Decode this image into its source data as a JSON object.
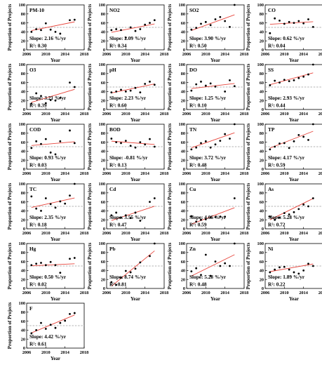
{
  "figure": {
    "ylabel": "Proportion of Projects",
    "xlabel": "Year"
  },
  "colors": {
    "trend": "#e8453c",
    "reference": "#9a9a9a",
    "points": "#000000"
  },
  "chart_data": [
    {
      "type": "scatter",
      "title": "PM-10",
      "slope_text": "Slope: 2.16 %/yr",
      "r2_text": "R²: 0.30",
      "xlim": [
        2006,
        2018
      ],
      "ylim": [
        0,
        100
      ],
      "xticks": [
        2006,
        2010,
        2014,
        2018
      ],
      "yticks": [
        0,
        20,
        40,
        60,
        80,
        100
      ],
      "reference": 50,
      "xlabel": "Year",
      "ylabel": "Proportion of Projects",
      "x": [
        2007,
        2008,
        2009,
        2010,
        2011,
        2012,
        2013,
        2015,
        2016
      ],
      "y": [
        40,
        46,
        44,
        59,
        45,
        40,
        36,
        66,
        67
      ],
      "trend": [
        [
          2007,
          42.9
        ],
        [
          2016,
          62.3
        ]
      ]
    },
    {
      "type": "scatter",
      "title": "NO2",
      "slope_text": "Slope: 2.09 %/yr",
      "r2_text": "R²: 0.34",
      "xlim": [
        2006,
        2018
      ],
      "ylim": [
        0,
        100
      ],
      "xticks": [
        2006,
        2010,
        2014,
        2018
      ],
      "yticks": [
        0,
        20,
        40,
        60,
        80,
        100
      ],
      "reference": 50,
      "xlabel": "Year",
      "ylabel": "Proportion of Projects",
      "x": [
        2007,
        2008,
        2009,
        2010,
        2011,
        2012,
        2013,
        2014,
        2015,
        2016
      ],
      "y": [
        44,
        46,
        44,
        27,
        50,
        42,
        46,
        56,
        60,
        66
      ],
      "trend": [
        [
          2007,
          38.9
        ],
        [
          2016,
          57.7
        ]
      ]
    },
    {
      "type": "scatter",
      "title": "SO2",
      "slope_text": "Slope: 3.90 %/yr",
      "r2_text": "R²: 0.50",
      "xlim": [
        2006,
        2018
      ],
      "ylim": [
        0,
        100
      ],
      "xticks": [
        2006,
        2010,
        2014,
        2018
      ],
      "yticks": [
        0,
        20,
        40,
        60,
        80,
        100
      ],
      "reference": 50,
      "xlabel": "Year",
      "ylabel": "Proportion of Projects",
      "x": [
        2007,
        2008,
        2009,
        2010,
        2011,
        2012,
        2013,
        2014,
        2015,
        2016
      ],
      "y": [
        45,
        49,
        58,
        62,
        55,
        68,
        73,
        64,
        51,
        100
      ],
      "trend": [
        [
          2007,
          43.0
        ],
        [
          2016,
          78.1
        ]
      ]
    },
    {
      "type": "scatter",
      "title": "CO",
      "slope_text": "Slope: 0.62 %/yr",
      "r2_text": "R²: 0.04",
      "xlim": [
        2006,
        2018
      ],
      "ylim": [
        0,
        100
      ],
      "xticks": [
        2006,
        2010,
        2014,
        2018
      ],
      "yticks": [
        0,
        20,
        40,
        60,
        80,
        100
      ],
      "reference": 50,
      "xlabel": "Year",
      "ylabel": "Proportion of Projects",
      "x": [
        2007,
        2008,
        2009,
        2010,
        2011,
        2012,
        2013,
        2014,
        2015,
        2016
      ],
      "y": [
        37,
        70,
        65,
        58,
        62,
        60,
        64,
        59,
        68,
        51
      ],
      "trend": [
        [
          2007,
          57.0
        ],
        [
          2016,
          62.6
        ]
      ]
    },
    {
      "type": "scatter",
      "title": "O3",
      "slope_text": "Slope: 3.21 %/yr",
      "r2_text": "R²: 0.39",
      "xlim": [
        2006,
        2018
      ],
      "ylim": [
        0,
        100
      ],
      "xticks": [
        2006,
        2010,
        2014,
        2018
      ],
      "yticks": [
        0,
        20,
        40,
        60,
        80,
        100
      ],
      "reference": 50,
      "xlabel": "Year",
      "ylabel": "Proportion of Projects",
      "x": [
        2007,
        2008,
        2009,
        2010,
        2011,
        2012,
        2013,
        2015,
        2016
      ],
      "y": [
        13,
        36,
        30,
        14,
        21,
        20,
        26,
        60,
        50
      ],
      "trend": [
        [
          2007,
          16.0
        ],
        [
          2016,
          44.9
        ]
      ]
    },
    {
      "type": "scatter",
      "title": "pH",
      "slope_text": "Slope: 2.23 %/yr",
      "r2_text": "R²: 0.60",
      "xlim": [
        2006,
        2018
      ],
      "ylim": [
        0,
        100
      ],
      "xticks": [
        2006,
        2010,
        2014,
        2018
      ],
      "yticks": [
        0,
        20,
        40,
        60,
        80,
        100
      ],
      "reference": 50,
      "xlabel": "Year",
      "ylabel": "Proportion of Projects",
      "x": [
        2007,
        2008,
        2009,
        2010,
        2011,
        2012,
        2013,
        2014,
        2015,
        2016
      ],
      "y": [
        38,
        40,
        44,
        40,
        42,
        48,
        38,
        57,
        62,
        55
      ],
      "trend": [
        [
          2007,
          36.8
        ],
        [
          2016,
          56.9
        ]
      ]
    },
    {
      "type": "scatter",
      "title": "DO",
      "slope_text": "Slope: 1.25 %/yr",
      "r2_text": "R²: 0.10",
      "xlim": [
        2006,
        2018
      ],
      "ylim": [
        0,
        100
      ],
      "xticks": [
        2006,
        2010,
        2014,
        2018
      ],
      "yticks": [
        0,
        20,
        40,
        60,
        80,
        100
      ],
      "reference": 50,
      "xlabel": "Year",
      "ylabel": "Proportion of Projects",
      "x": [
        2007,
        2008,
        2009,
        2010,
        2011,
        2012,
        2014,
        2015,
        2016
      ],
      "y": [
        42,
        56,
        62,
        53,
        58,
        51,
        40,
        65,
        52
      ],
      "trend": [
        [
          2007,
          46.6
        ],
        [
          2016,
          57.9
        ]
      ]
    },
    {
      "type": "scatter",
      "title": "SS",
      "slope_text": "Slope: 2.93 %/yr",
      "r2_text": "R²: 0.44",
      "xlim": [
        2006,
        2018
      ],
      "ylim": [
        0,
        100
      ],
      "xticks": [
        2006,
        2010,
        2014,
        2018
      ],
      "yticks": [
        0,
        20,
        40,
        60,
        80,
        100
      ],
      "reference": 50,
      "xlabel": "Year",
      "ylabel": "Proportion of Projects",
      "x": [
        2007,
        2008,
        2009,
        2010,
        2011,
        2012,
        2013,
        2014,
        2015,
        2016
      ],
      "y": [
        54,
        64,
        60,
        66,
        63,
        65,
        70,
        73,
        78,
        100
      ],
      "trend": [
        [
          2007,
          55.2
        ],
        [
          2016,
          81.6
        ]
      ]
    },
    {
      "type": "scatter",
      "title": "COD",
      "slope_text": "Slope: 0.93 %/yr",
      "r2_text": "R²: 0.03",
      "xlim": [
        2006,
        2018
      ],
      "ylim": [
        0,
        100
      ],
      "xticks": [
        2006,
        2010,
        2014,
        2018
      ],
      "yticks": [
        0,
        20,
        40,
        60,
        80,
        100
      ],
      "reference": 50,
      "xlabel": "Year",
      "ylabel": "Proportion of Projects",
      "x": [
        2007,
        2008,
        2009,
        2010,
        2011,
        2012,
        2013,
        2015,
        2016
      ],
      "y": [
        47,
        62,
        56,
        67,
        37,
        33,
        62,
        86,
        58
      ],
      "trend": [
        [
          2007,
          52.6
        ],
        [
          2016,
          61.0
        ]
      ]
    },
    {
      "type": "scatter",
      "title": "BOD",
      "slope_text": "Slope: -0.81 %/yr",
      "r2_text": "R²: 0.13",
      "xlim": [
        2006,
        2018
      ],
      "ylim": [
        0,
        100
      ],
      "xticks": [
        2006,
        2010,
        2014,
        2018
      ],
      "yticks": [
        0,
        20,
        40,
        60,
        80,
        100
      ],
      "reference": 50,
      "xlabel": "Year",
      "ylabel": "Proportion of Projects",
      "x": [
        2007,
        2008,
        2009,
        2010,
        2011,
        2012,
        2013,
        2014,
        2015,
        2016
      ],
      "y": [
        68,
        60,
        58,
        63,
        52,
        48,
        60,
        55,
        67,
        50
      ],
      "trend": [
        [
          2007,
          62.3
        ],
        [
          2016,
          55.0
        ]
      ]
    },
    {
      "type": "scatter",
      "title": "TN",
      "slope_text": "Slope: 3.72 %/yr",
      "r2_text": "R²: 0.48",
      "xlim": [
        2006,
        2018
      ],
      "ylim": [
        0,
        100
      ],
      "xticks": [
        2006,
        2010,
        2014,
        2018
      ],
      "yticks": [
        0,
        20,
        40,
        60,
        80,
        100
      ],
      "reference": 50,
      "xlabel": "Year",
      "ylabel": "Proportion of Projects",
      "x": [
        2007,
        2008,
        2009,
        2010,
        2011,
        2012,
        2013,
        2014,
        2015,
        2016
      ],
      "y": [
        44,
        48,
        58,
        62,
        48,
        55,
        63,
        78,
        68,
        100
      ],
      "trend": [
        [
          2007,
          47.5
        ],
        [
          2016,
          81.0
        ]
      ]
    },
    {
      "type": "scatter",
      "title": "TP",
      "slope_text": "Slope: 4.17 %/yr",
      "r2_text": "R²: 0.59",
      "xlim": [
        2006,
        2018
      ],
      "ylim": [
        0,
        100
      ],
      "xticks": [
        2006,
        2010,
        2014,
        2018
      ],
      "yticks": [
        0,
        20,
        40,
        60,
        80,
        100
      ],
      "reference": 50,
      "xlabel": "Year",
      "ylabel": "Proportion of Projects",
      "x": [
        2007,
        2008,
        2009,
        2010,
        2011,
        2012,
        2013,
        2014,
        2015,
        2016
      ],
      "y": [
        44,
        50,
        57,
        58,
        47,
        62,
        76,
        72,
        65,
        100
      ],
      "trend": [
        [
          2007,
          46.9
        ],
        [
          2016,
          84.4
        ]
      ]
    },
    {
      "type": "scatter",
      "title": "TC",
      "slope_text": "Slope: 2.35 %/yr",
      "r2_text": "R²: 0.18",
      "xlim": [
        2006,
        2018
      ],
      "ylim": [
        0,
        100
      ],
      "xticks": [
        2006,
        2010,
        2014,
        2018
      ],
      "yticks": [
        0,
        20,
        40,
        60,
        80,
        100
      ],
      "reference": 50,
      "xlabel": "Year",
      "ylabel": "Proportion of Projects",
      "x": [
        2007,
        2008,
        2009,
        2010,
        2011,
        2012,
        2013,
        2014,
        2015,
        2016
      ],
      "y": [
        72,
        45,
        40,
        68,
        55,
        47,
        61,
        56,
        74,
        100
      ],
      "trend": [
        [
          2007,
          47.5
        ],
        [
          2016,
          68.7
        ]
      ]
    },
    {
      "type": "scatter",
      "title": "Cd",
      "slope_text": "Slope: 3.55 %/yr",
      "r2_text": "R²: 0.47",
      "xlim": [
        2006,
        2018
      ],
      "ylim": [
        0,
        100
      ],
      "xticks": [
        2006,
        2010,
        2014,
        2018
      ],
      "yticks": [
        0,
        20,
        40,
        60,
        80,
        100
      ],
      "reference": 50,
      "xlabel": "Year",
      "ylabel": "Proportion of Projects",
      "x": [
        2007,
        2008,
        2009,
        2010,
        2011,
        2012,
        2013,
        2015,
        2016
      ],
      "y": [
        30,
        36,
        25,
        30,
        24,
        36,
        18,
        60,
        68
      ],
      "trend": [
        [
          2007,
          18.4
        ],
        [
          2016,
          50.3
        ]
      ]
    },
    {
      "type": "scatter",
      "title": "Cu",
      "slope_text": "Slope: 4.06 %/yr",
      "r2_text": "R²: 0.59",
      "xlim": [
        2006,
        2018
      ],
      "ylim": [
        0,
        100
      ],
      "xticks": [
        2006,
        2010,
        2014,
        2018
      ],
      "yticks": [
        0,
        20,
        40,
        60,
        80,
        100
      ],
      "reference": 50,
      "xlabel": "Year",
      "ylabel": "Proportion of Projects",
      "x": [
        2007,
        2008,
        2009,
        2010,
        2011,
        2012,
        2013,
        2014,
        2016
      ],
      "y": [
        28,
        16,
        20,
        21,
        25,
        26,
        27,
        27,
        68
      ],
      "trend": [
        [
          2007,
          10.5
        ],
        [
          2016,
          47.0
        ]
      ]
    },
    {
      "type": "scatter",
      "title": "As",
      "slope_text": "Slope: 5.28 %/yr",
      "r2_text": "R²: 0.72",
      "xlim": [
        2006,
        2018
      ],
      "ylim": [
        0,
        100
      ],
      "xticks": [
        2006,
        2010,
        2014,
        2018
      ],
      "yticks": [
        0,
        20,
        40,
        60,
        80,
        100
      ],
      "reference": 50,
      "xlabel": "Year",
      "ylabel": "Proportion of Projects",
      "x": [
        2007,
        2008,
        2009,
        2010,
        2011,
        2012,
        2013,
        2014,
        2015,
        2016
      ],
      "y": [
        27,
        20,
        25,
        35,
        32,
        37,
        44,
        54,
        50,
        68
      ],
      "trend": [
        [
          2007,
          20.0
        ],
        [
          2016,
          67.5
        ]
      ]
    },
    {
      "type": "scatter",
      "title": "Hg",
      "slope_text": "Slope: 0.50 %/yr",
      "r2_text": "R²: 0.02",
      "xlim": [
        2006,
        2018
      ],
      "ylim": [
        0,
        100
      ],
      "xticks": [
        2006,
        2010,
        2014,
        2018
      ],
      "yticks": [
        0,
        20,
        40,
        60,
        80,
        100
      ],
      "reference": 50,
      "xlabel": "Year",
      "ylabel": "Proportion of Projects",
      "x": [
        2007,
        2008,
        2009,
        2010,
        2011,
        2012,
        2013,
        2015,
        2016
      ],
      "y": [
        52,
        55,
        57,
        52,
        59,
        52,
        35,
        66,
        68
      ],
      "trend": [
        [
          2007,
          50.5
        ],
        [
          2016,
          55.0
        ]
      ]
    },
    {
      "type": "scatter",
      "title": "Pb",
      "slope_text": "Slope: 8.74 %/yr",
      "r2_text": "R²: 0.81",
      "xlim": [
        2006,
        2018
      ],
      "ylim": [
        0,
        100
      ],
      "xticks": [
        2006,
        2010,
        2014,
        2018
      ],
      "yticks": [
        0,
        20,
        40,
        60,
        80,
        100
      ],
      "reference": 50,
      "xlabel": "Year",
      "ylabel": "Proportion of Projects",
      "x": [
        2007,
        2008,
        2009,
        2010,
        2011,
        2012,
        2013,
        2015,
        2016
      ],
      "y": [
        14,
        8,
        24,
        39,
        36,
        44,
        58,
        72,
        100
      ],
      "trend": [
        [
          2007,
          5.0
        ],
        [
          2016,
          83.7
        ]
      ]
    },
    {
      "type": "scatter",
      "title": "Zn",
      "slope_text": "Slope: 5.28 %/yr",
      "r2_text": "R²: 0.48",
      "xlim": [
        2006,
        2018
      ],
      "ylim": [
        0,
        100
      ],
      "xticks": [
        2006,
        2010,
        2014,
        2018
      ],
      "yticks": [
        0,
        20,
        40,
        60,
        80,
        100
      ],
      "reference": 50,
      "xlabel": "Year",
      "ylabel": "Proportion of Projects",
      "x": [
        2007,
        2008,
        2009,
        2010,
        2011,
        2012,
        2013,
        2014,
        2015,
        2016
      ],
      "y": [
        38,
        45,
        30,
        75,
        28,
        60,
        50,
        56,
        50,
        100
      ],
      "trend": [
        [
          2007,
          27.7
        ],
        [
          2016,
          75.2
        ]
      ]
    },
    {
      "type": "scatter",
      "title": "Ni",
      "slope_text": "Slope: 1.89 %/yr",
      "r2_text": "R²: 0.22",
      "xlim": [
        2006,
        2018
      ],
      "ylim": [
        0,
        100
      ],
      "xticks": [
        2006,
        2010,
        2014,
        2018
      ],
      "yticks": [
        0,
        20,
        40,
        60,
        80,
        100
      ],
      "reference": 50,
      "xlabel": "Year",
      "ylabel": "Proportion of Projects",
      "x": [
        2007,
        2008,
        2009,
        2010,
        2011,
        2012,
        2013,
        2014,
        2015,
        2016
      ],
      "y": [
        36,
        42,
        47,
        48,
        42,
        36,
        33,
        40,
        55,
        50
      ],
      "trend": [
        [
          2007,
          37.5
        ],
        [
          2016,
          54.5
        ]
      ]
    },
    {
      "type": "scatter",
      "title": "F",
      "slope_text": "Slope: 4.42 %/yr",
      "r2_text": "R²: 0.61",
      "xlim": [
        2006,
        2018
      ],
      "ylim": [
        0,
        100
      ],
      "xticks": [
        2006,
        2010,
        2014,
        2018
      ],
      "yticks": [
        0,
        20,
        40,
        60,
        80,
        100
      ],
      "reference": 50,
      "xlabel": "Year",
      "ylabel": "Proportion of Projects",
      "x": [
        2007,
        2008,
        2009,
        2010,
        2011,
        2012,
        2013,
        2014,
        2015,
        2016
      ],
      "y": [
        33,
        40,
        56,
        43,
        52,
        45,
        56,
        61,
        76,
        78
      ],
      "trend": [
        [
          2007,
          33.9
        ],
        [
          2016,
          73.7
        ]
      ]
    }
  ]
}
